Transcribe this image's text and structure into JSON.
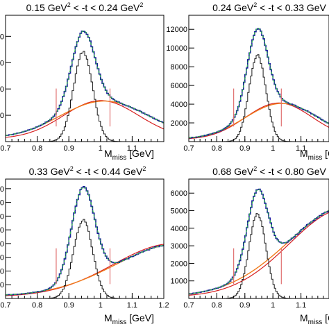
{
  "colors": {
    "data_histogram": "#1a1a9e",
    "data_points": "#000000",
    "total_fit": "#2fb84a",
    "signal_hist": "#1a1a1a",
    "signal_points": "#b03030",
    "background_orange": "#f07a1a",
    "background_red": "#d62020",
    "cut_lines": "#e07070"
  },
  "chart_data": [
    {
      "type": "line",
      "title_parts": {
        "a": "0.15 GeV",
        "b": "2",
        "c": " < -t < 0.24 GeV",
        "d": "2"
      },
      "title": "0.15 GeV² < -t < 0.24 GeV²",
      "xlabel_main": "M",
      "xlabel_sub": "miss",
      "xlabel_unit": " [GeV]",
      "xlim": [
        0.7,
        1.2
      ],
      "ylim": [
        0,
        4800
      ],
      "xticks": [
        0.7,
        0.8,
        0.9,
        1,
        1.1
      ],
      "xtick_labels": [
        "0.7",
        "0.8",
        "0.9",
        "1",
        "1.1"
      ],
      "yticks": [
        1000,
        2000,
        3000,
        4000
      ],
      "ytick_labels": [
        "000",
        "000",
        "000",
        "000"
      ],
      "cut_lines_x": [
        0.86,
        1.03
      ],
      "peak": {
        "mu": 0.945,
        "sigma": 0.032,
        "amp": 4200
      },
      "signal": {
        "amp": 3400
      },
      "background": {
        "center": 1.01,
        "width": 0.14,
        "amp": 1400,
        "floor": 150
      },
      "background2": {
        "center": 1.0,
        "width": 0.12,
        "amp": 1450,
        "floor": 120
      }
    },
    {
      "type": "line",
      "title_parts": {
        "a": "0.24 GeV",
        "b": "2",
        "c": " < -t < 0.33 GeV",
        "d": ""
      },
      "title": "0.24 GeV² < -t < 0.33 GeV",
      "xlabel_main": "M",
      "xlabel_sub": "miss",
      "xlabel_unit": " [G",
      "xlim": [
        0.7,
        1.2
      ],
      "ylim": [
        0,
        13500
      ],
      "xticks": [
        0.7,
        0.8,
        0.9,
        1,
        1.1
      ],
      "xtick_labels": [
        "0.7",
        "0.8",
        "0.9",
        "1",
        "1.1"
      ],
      "yticks": [
        2000,
        4000,
        6000,
        8000,
        10000,
        12000
      ],
      "ytick_labels": [
        "2000",
        "4000",
        "6000",
        "8000",
        "10000",
        "12000"
      ],
      "cut_lines_x": [
        0.86,
        1.03
      ],
      "peak": {
        "mu": 0.945,
        "sigma": 0.032,
        "amp": 12100
      },
      "signal": {
        "amp": 9200
      },
      "background": {
        "center": 1.03,
        "width": 0.13,
        "amp": 3800,
        "floor": 300
      },
      "background2": {
        "center": 1.02,
        "width": 0.12,
        "amp": 3900,
        "floor": 250
      }
    },
    {
      "type": "line",
      "title_parts": {
        "a": "0.33 GeV",
        "b": "2",
        "c": " < -t < 0.44 GeV",
        "d": "2"
      },
      "title": "0.33 GeV² < -t < 0.44 GeV²",
      "xlabel_main": "M",
      "xlabel_sub": "miss",
      "xlabel_unit": " [GeV]",
      "xlim": [
        0.7,
        1.2
      ],
      "ylim": [
        0,
        8700
      ],
      "xticks": [
        0.7,
        0.8,
        0.9,
        1,
        1.1,
        1.2
      ],
      "xtick_labels": [
        "0.7",
        "0.8",
        "0.9",
        "1",
        "1.1",
        "1.2"
      ],
      "yticks": [
        1000,
        2000,
        3000,
        4000,
        5000,
        6000,
        7000,
        8000
      ],
      "ytick_labels": [
        "000",
        "000",
        "000",
        "000",
        "000",
        "000",
        "000",
        "000"
      ],
      "cut_lines_x": [
        0.86,
        1.03
      ],
      "peak": {
        "mu": 0.945,
        "sigma": 0.032,
        "amp": 8100
      },
      "signal": {
        "amp": 5700
      },
      "background": {
        "center": 1.25,
        "width": 0.2,
        "amp": 3800,
        "floor": 200
      },
      "background2": {
        "center": 1.23,
        "width": 0.19,
        "amp": 3850,
        "floor": 150
      }
    },
    {
      "type": "line",
      "title_parts": {
        "a": "0.68 GeV",
        "b": "2",
        "c": " < -t < 0.80 GeV",
        "d": ""
      },
      "title": "0.68 GeV² < -t < 0.80 GeV",
      "xlabel_main": "M",
      "xlabel_sub": "miss",
      "xlabel_unit": " [G",
      "xlim": [
        0.7,
        1.2
      ],
      "ylim": [
        0,
        6800
      ],
      "xticks": [
        0.7,
        0.8,
        0.9,
        1,
        1.1
      ],
      "xtick_labels": [
        "0.7",
        "0.8",
        "0.9",
        "1",
        "1.1"
      ],
      "yticks": [
        1000,
        2000,
        3000,
        4000,
        5000,
        6000
      ],
      "ytick_labels": [
        "1000",
        "2000",
        "3000",
        "4000",
        "5000",
        "6000"
      ],
      "cut_lines_x": [
        0.86,
        1.03
      ],
      "peak": {
        "mu": 0.945,
        "sigma": 0.032,
        "amp": 6200
      },
      "signal": {
        "amp": 4800
      },
      "background": {
        "center": 1.28,
        "width": 0.22,
        "amp": 5200,
        "floor": 150
      },
      "background2": {
        "center": 1.26,
        "width": 0.2,
        "amp": 5000,
        "floor": 120
      }
    }
  ]
}
